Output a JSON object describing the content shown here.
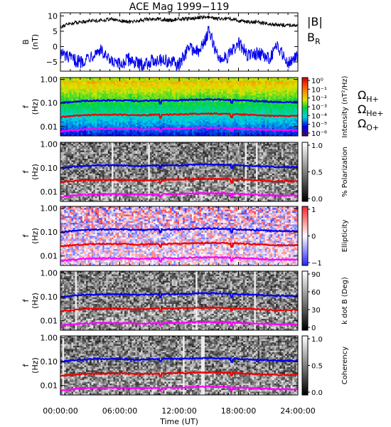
{
  "chart_data": {
    "title": "ACE Mag 1999−119",
    "xlabel": "Time (UT)",
    "x_ticks": [
      "00:00:00",
      "06:00:00",
      "12:00:00",
      "18:00:00",
      "24:00:00"
    ],
    "xlim_hours": [
      0,
      24
    ],
    "panels": [
      {
        "type": "line",
        "ylabel": "B (nT)",
        "ylim": [
          -8,
          11
        ],
        "y_ticks": [
          "10",
          "5",
          "0",
          "−5"
        ],
        "y_tick_values": [
          10,
          5,
          0,
          -5
        ],
        "series": [
          {
            "name": "|B|",
            "color": "#000000",
            "x": [
              0,
              1,
              2,
              3,
              4,
              5,
              6,
              7,
              8,
              9,
              10,
              11,
              12,
              13,
              14,
              15,
              16,
              17,
              18,
              19,
              20,
              21,
              22,
              23,
              24
            ],
            "values": [
              6.5,
              7.5,
              8,
              8.5,
              8.5,
              9,
              8.5,
              8,
              8.5,
              9,
              9,
              8.5,
              9,
              9,
              9.5,
              9.5,
              9,
              9,
              8.5,
              8,
              8,
              7.5,
              7,
              7,
              7
            ]
          },
          {
            "name": "B",
            "name_sub": "R",
            "color": "#0000ee",
            "x": [
              0,
              1,
              2,
              3,
              4,
              5,
              6,
              7,
              8,
              9,
              10,
              11,
              12,
              13,
              14,
              15,
              16,
              17,
              18,
              19,
              20,
              21,
              22,
              23,
              24
            ],
            "values": [
              -2,
              -4,
              -5,
              -3,
              -1,
              -5,
              -6,
              -4,
              -6,
              -5,
              -4,
              -5,
              -6,
              0,
              -2,
              5,
              -4,
              -3,
              1,
              -3,
              -2,
              -4,
              0,
              -5,
              -3
            ]
          }
        ]
      },
      {
        "type": "heatmap",
        "ylabel": "f (Hz)",
        "ylim": [
          0.004,
          1.2
        ],
        "yscale": "log",
        "y_ticks": [
          "1.00",
          "0.10",
          "0.01"
        ],
        "colorbar": {
          "label": "Intensity (nT²/Hz)",
          "colormap": "rainbow",
          "ticks": [
            "10⁰",
            "10⁻¹",
            "10⁻²",
            "10⁻³",
            "10⁻⁴",
            "10⁻⁵",
            "10⁻⁶"
          ]
        },
        "legend": [
          {
            "symbol": "Ω",
            "sub": "H+",
            "color": "#0000ee"
          },
          {
            "symbol": "Ω",
            "sub": "He+",
            "color": "#ee0000"
          },
          {
            "symbol": "Ω",
            "sub": "O+",
            "color": "#ff00ff"
          }
        ]
      },
      {
        "type": "heatmap",
        "ylabel": "f (Hz)",
        "ylim": [
          0.004,
          1.2
        ],
        "yscale": "log",
        "y_ticks": [
          "1.00",
          "0.10",
          "0.01"
        ],
        "colorbar": {
          "label": "% Polarization",
          "colormap": "gray",
          "ticks": [
            "1.0",
            "0.5",
            "0.0"
          ]
        }
      },
      {
        "type": "heatmap",
        "ylabel": "f (Hz)",
        "ylim": [
          0.004,
          1.2
        ],
        "yscale": "log",
        "y_ticks": [
          "1.00",
          "0.10",
          "0.01"
        ],
        "colorbar": {
          "label": "Ellipticity",
          "colormap": "bwr",
          "ticks": [
            "1",
            "0",
            "−1"
          ]
        }
      },
      {
        "type": "heatmap",
        "ylabel": "f (Hz)",
        "ylim": [
          0.004,
          1.2
        ],
        "yscale": "log",
        "y_ticks": [
          "1.00",
          "0.10",
          "0.01"
        ],
        "colorbar": {
          "label": "k dot B (Deg)",
          "colormap": "gray",
          "ticks": [
            "90",
            "60",
            "30",
            "0"
          ]
        }
      },
      {
        "type": "heatmap",
        "ylabel": "f (Hz)",
        "ylim": [
          0.004,
          1.2
        ],
        "yscale": "log",
        "y_ticks": [
          "1.00",
          "0.10",
          "0.01"
        ],
        "colorbar": {
          "label": "Coherency",
          "colormap": "gray",
          "ticks": [
            "1.0",
            "0.5",
            "0.0"
          ]
        }
      }
    ],
    "gyrofrequency_lines": [
      {
        "name": "ΩH+",
        "color": "#0000ee",
        "x": [
          0,
          2,
          4,
          6,
          8,
          10,
          12,
          14,
          16,
          18,
          20,
          22,
          24
        ],
        "values": [
          0.1,
          0.12,
          0.13,
          0.13,
          0.12,
          0.13,
          0.13,
          0.14,
          0.14,
          0.13,
          0.12,
          0.11,
          0.11
        ]
      },
      {
        "name": "ΩHe+",
        "color": "#ee0000",
        "x": [
          0,
          2,
          4,
          6,
          8,
          10,
          12,
          14,
          16,
          18,
          20,
          22,
          24
        ],
        "values": [
          0.025,
          0.03,
          0.032,
          0.032,
          0.03,
          0.032,
          0.033,
          0.035,
          0.035,
          0.033,
          0.03,
          0.028,
          0.028
        ]
      },
      {
        "name": "ΩO+",
        "color": "#ff00ff",
        "x": [
          0,
          2,
          4,
          6,
          8,
          10,
          12,
          14,
          16,
          18,
          20,
          22,
          24
        ],
        "values": [
          0.0062,
          0.0075,
          0.008,
          0.008,
          0.0075,
          0.008,
          0.0082,
          0.0088,
          0.0088,
          0.0082,
          0.0075,
          0.007,
          0.007
        ]
      }
    ]
  }
}
